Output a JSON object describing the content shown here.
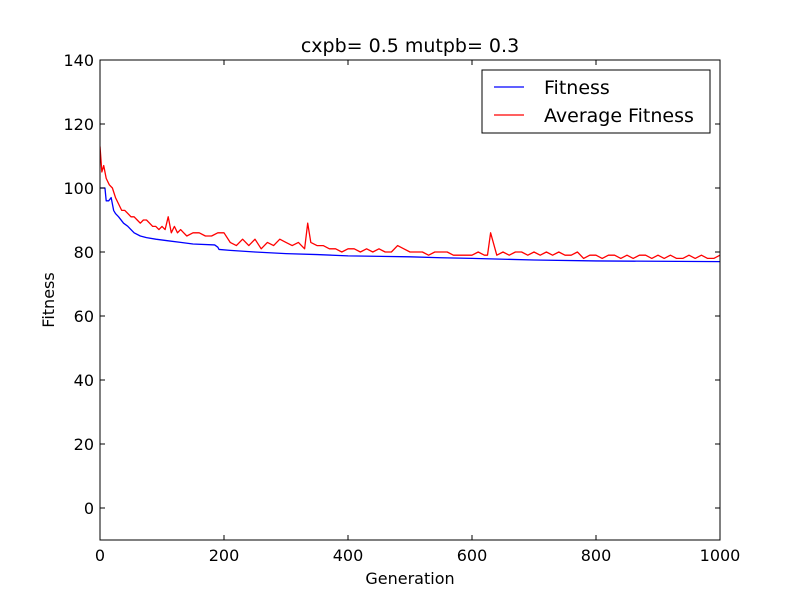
{
  "chart_data": {
    "type": "line",
    "title": "cxpb= 0.5 mutpb= 0.3",
    "xlabel": "Generation",
    "ylabel": "Fitness",
    "xlim": [
      0,
      1000
    ],
    "ylim": [
      -10,
      140
    ],
    "xticks": [
      0,
      200,
      400,
      600,
      800,
      1000
    ],
    "yticks": [
      0,
      20,
      40,
      60,
      80,
      100,
      120,
      140
    ],
    "grid": false,
    "legend_position": "top-right",
    "series": [
      {
        "name": "Fitness",
        "color": "#0000ff",
        "x": [
          0,
          8,
          10,
          14,
          18,
          22,
          25,
          30,
          38,
          45,
          55,
          65,
          75,
          90,
          110,
          130,
          150,
          185,
          190,
          192,
          210,
          250,
          300,
          350,
          400,
          500,
          550,
          600,
          700,
          800,
          1000
        ],
        "values": [
          100,
          100,
          96,
          96,
          97,
          93,
          92,
          91,
          89,
          88,
          86,
          85,
          84.5,
          84,
          83.5,
          83,
          82.5,
          82.2,
          81.5,
          80.8,
          80.5,
          80,
          79.5,
          79.2,
          78.8,
          78.5,
          78.2,
          78,
          77.5,
          77.2,
          77
        ]
      },
      {
        "name": "Average Fitness",
        "color": "#ff0000",
        "x": [
          0,
          3,
          6,
          10,
          15,
          20,
          25,
          30,
          35,
          40,
          45,
          50,
          55,
          60,
          65,
          70,
          75,
          80,
          85,
          90,
          95,
          100,
          105,
          110,
          115,
          120,
          125,
          130,
          135,
          140,
          150,
          160,
          170,
          180,
          190,
          200,
          210,
          220,
          230,
          240,
          250,
          260,
          270,
          280,
          290,
          300,
          310,
          320,
          330,
          335,
          340,
          350,
          360,
          370,
          380,
          390,
          400,
          410,
          420,
          430,
          440,
          450,
          460,
          470,
          480,
          490,
          500,
          510,
          520,
          530,
          540,
          550,
          560,
          570,
          580,
          590,
          600,
          610,
          620,
          625,
          630,
          640,
          650,
          660,
          670,
          680,
          690,
          700,
          710,
          720,
          730,
          740,
          750,
          760,
          770,
          780,
          790,
          800,
          810,
          820,
          830,
          840,
          850,
          860,
          870,
          880,
          890,
          900,
          910,
          920,
          930,
          940,
          950,
          960,
          970,
          980,
          990,
          1000
        ],
        "values": [
          113,
          105,
          107,
          103,
          101,
          100,
          97,
          95,
          93,
          93,
          92,
          91,
          91,
          90,
          89,
          90,
          90,
          89,
          88,
          88,
          87,
          88,
          87,
          91,
          86,
          88,
          86,
          87,
          86,
          85,
          86,
          86,
          85,
          85,
          86,
          86,
          83,
          82,
          84,
          82,
          84,
          81,
          83,
          82,
          84,
          83,
          82,
          83,
          81,
          89,
          83,
          82,
          82,
          81,
          81,
          80,
          81,
          81,
          80,
          81,
          80,
          81,
          80,
          80,
          82,
          81,
          80,
          80,
          80,
          79,
          80,
          80,
          80,
          79,
          79,
          79,
          79,
          80,
          79,
          79,
          86,
          79,
          80,
          79,
          80,
          80,
          79,
          80,
          79,
          80,
          79,
          80,
          79,
          79,
          80,
          78,
          79,
          79,
          78,
          79,
          79,
          78,
          79,
          78,
          79,
          79,
          78,
          79,
          78,
          79,
          78,
          78,
          79,
          78,
          79,
          78,
          78,
          79
        ]
      }
    ]
  }
}
